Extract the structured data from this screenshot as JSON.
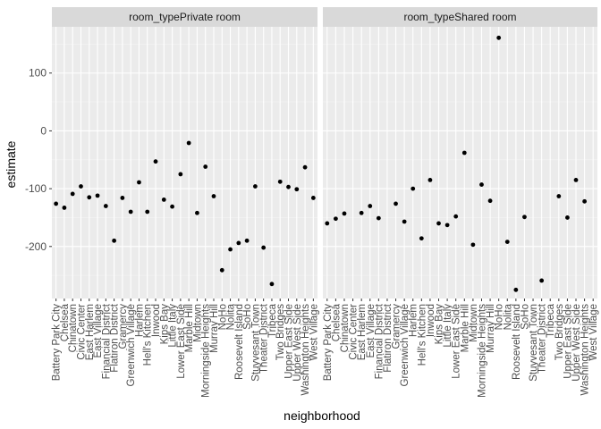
{
  "chart_data": {
    "type": "scatter",
    "xlabel": "neighborhood",
    "ylabel": "estimate",
    "ylim": [
      -290,
      180
    ],
    "yticks": [
      100,
      0,
      -100,
      -200
    ],
    "categories": [
      "Battery Park City",
      "Chelsea",
      "Chinatown",
      "Civic Center",
      "East Harlem",
      "East Village",
      "Financial District",
      "Flatiron District",
      "Gramercy",
      "Greenwich Village",
      "Harlem",
      "Hell's Kitchen",
      "Inwood",
      "Kips Bay",
      "Little Italy",
      "Lower East Side",
      "Marble Hill",
      "Midtown",
      "Morningside Heights",
      "Murray Hill",
      "NoHo",
      "Nolita",
      "Roosevelt Island",
      "SoHo",
      "Stuyvesant Town",
      "Theater District",
      "Tribeca",
      "Two Bridges",
      "Upper East Side",
      "Upper West Side",
      "Washington Heights",
      "West Village"
    ],
    "panels": [
      {
        "strip": "room_typePrivate room",
        "points": [
          {
            "x": 0,
            "y": -126
          },
          {
            "x": 1,
            "y": -133
          },
          {
            "x": 2,
            "y": -109
          },
          {
            "x": 3,
            "y": -96
          },
          {
            "x": 4,
            "y": -115
          },
          {
            "x": 5,
            "y": -112
          },
          {
            "x": 6,
            "y": -130
          },
          {
            "x": 7,
            "y": -190
          },
          {
            "x": 8,
            "y": -116
          },
          {
            "x": 9,
            "y": -140
          },
          {
            "x": 10,
            "y": -89
          },
          {
            "x": 11,
            "y": -140
          },
          {
            "x": 12,
            "y": -53
          },
          {
            "x": 13,
            "y": -119
          },
          {
            "x": 14,
            "y": -131
          },
          {
            "x": 15,
            "y": -75
          },
          {
            "x": 16,
            "y": -21
          },
          {
            "x": 17,
            "y": -142
          },
          {
            "x": 18,
            "y": -62
          },
          {
            "x": 19,
            "y": -113
          },
          {
            "x": 20,
            "y": -241
          },
          {
            "x": 21,
            "y": -205
          },
          {
            "x": 22,
            "y": -194
          },
          {
            "x": 23,
            "y": -190
          },
          {
            "x": 24,
            "y": -96
          },
          {
            "x": 25,
            "y": -202
          },
          {
            "x": 26,
            "y": -265
          },
          {
            "x": 27,
            "y": -88
          },
          {
            "x": 28,
            "y": -97
          },
          {
            "x": 29,
            "y": -101
          },
          {
            "x": 30,
            "y": -63
          },
          {
            "x": 31,
            "y": -116
          }
        ]
      },
      {
        "strip": "room_typeShared room",
        "points": [
          {
            "x": 0,
            "y": -160
          },
          {
            "x": 1,
            "y": -152
          },
          {
            "x": 2,
            "y": -143
          },
          {
            "x": 4,
            "y": -142
          },
          {
            "x": 5,
            "y": -130
          },
          {
            "x": 6,
            "y": -151
          },
          {
            "x": 8,
            "y": -126
          },
          {
            "x": 9,
            "y": -157
          },
          {
            "x": 10,
            "y": -100
          },
          {
            "x": 11,
            "y": -186
          },
          {
            "x": 12,
            "y": -85
          },
          {
            "x": 13,
            "y": -160
          },
          {
            "x": 14,
            "y": -163
          },
          {
            "x": 15,
            "y": -148
          },
          {
            "x": 16,
            "y": -38
          },
          {
            "x": 17,
            "y": -197
          },
          {
            "x": 18,
            "y": -93
          },
          {
            "x": 19,
            "y": -121
          },
          {
            "x": 20,
            "y": 161
          },
          {
            "x": 21,
            "y": -192
          },
          {
            "x": 22,
            "y": -275
          },
          {
            "x": 23,
            "y": -149
          },
          {
            "x": 25,
            "y": -259
          },
          {
            "x": 27,
            "y": -113
          },
          {
            "x": 28,
            "y": -150
          },
          {
            "x": 29,
            "y": -85
          },
          {
            "x": 30,
            "y": -122
          }
        ]
      }
    ]
  }
}
